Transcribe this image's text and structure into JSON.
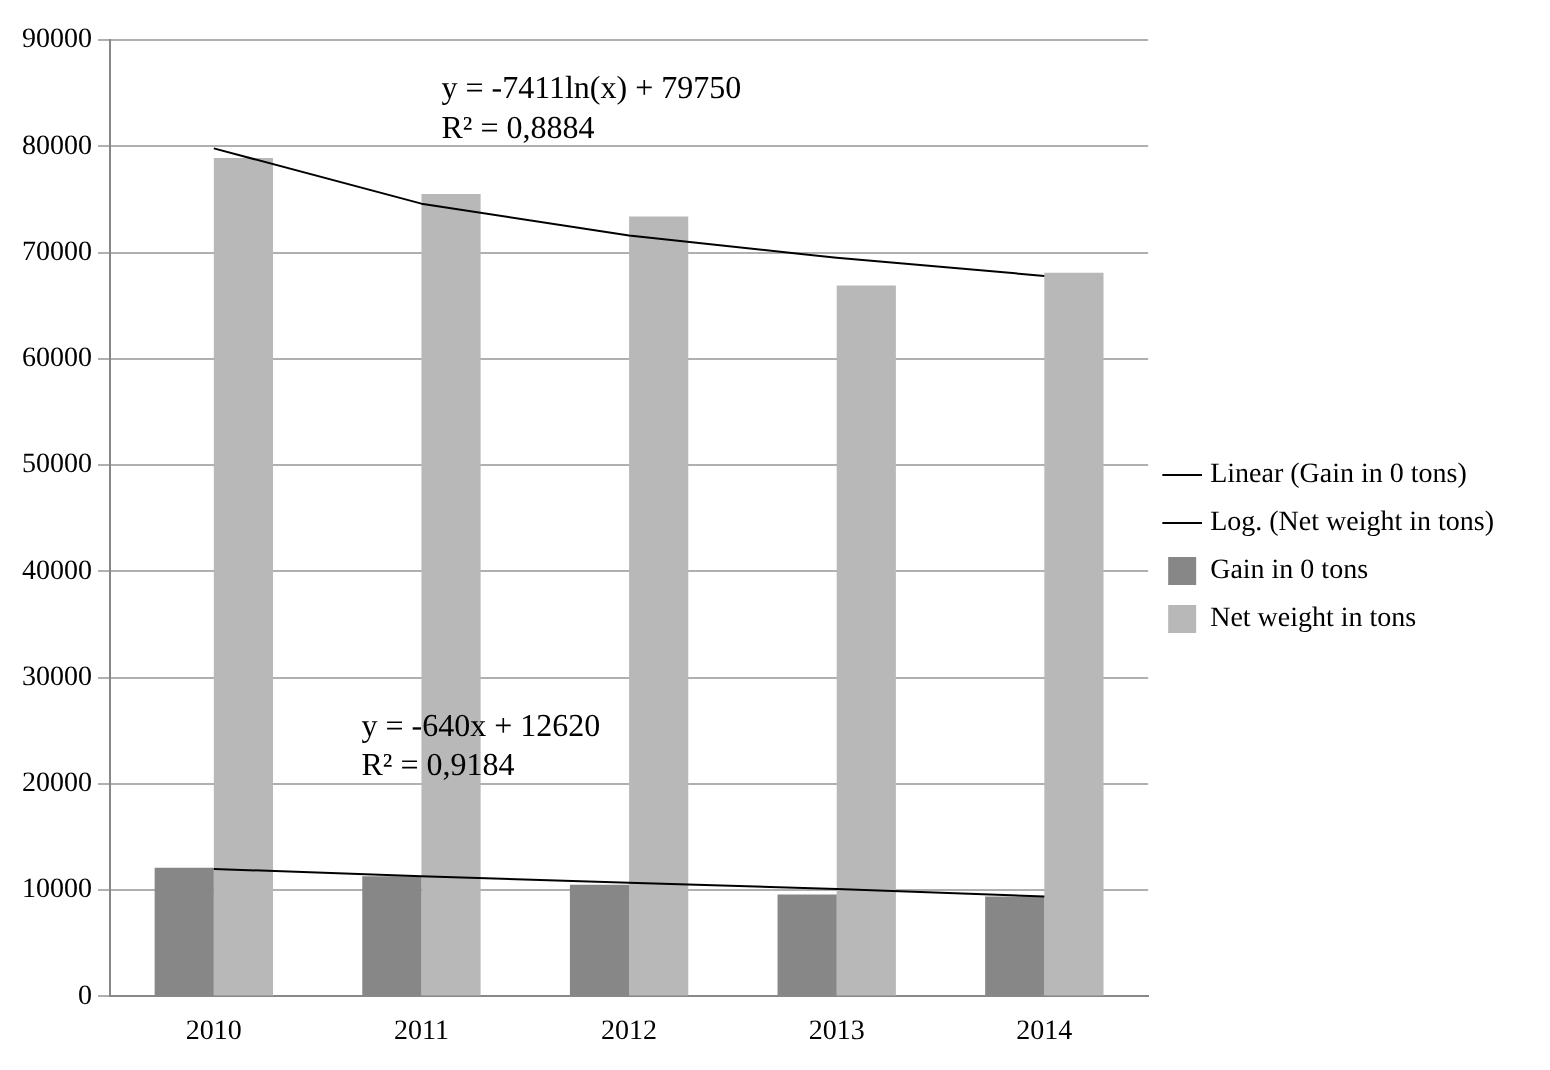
{
  "chart_data": {
    "type": "bar",
    "categories": [
      "2010",
      "2011",
      "2012",
      "2013",
      "2014"
    ],
    "series": [
      {
        "name": "Gain in 0 tons",
        "color": "#878787",
        "values": [
          12100,
          11300,
          10500,
          9600,
          9400
        ]
      },
      {
        "name": "Net weight in tons",
        "color": "#b8b8b8",
        "values": [
          78900,
          75500,
          73400,
          66900,
          68100
        ]
      },
      {
        "name": "Linear (Gain in 0 tons)",
        "type": "line",
        "color": "#000000",
        "values": [
          12000,
          11300,
          10700,
          10100,
          9400
        ]
      },
      {
        "name": "Log. (Net weight in tons)",
        "type": "line",
        "color": "#000000",
        "values": [
          79800,
          74600,
          71600,
          69500,
          67800
        ]
      }
    ],
    "ylim": [
      0,
      90000
    ],
    "yticks": [
      0,
      10000,
      20000,
      30000,
      40000,
      50000,
      60000,
      70000,
      80000,
      90000
    ],
    "grid": "y",
    "legend": "right",
    "marker": "none",
    "line_style": "solid",
    "annotations": [
      "y = -7411ln(x) + 79750",
      "R² = 0,8884",
      "y = -640x + 12620",
      "R² = 0,9184"
    ]
  }
}
